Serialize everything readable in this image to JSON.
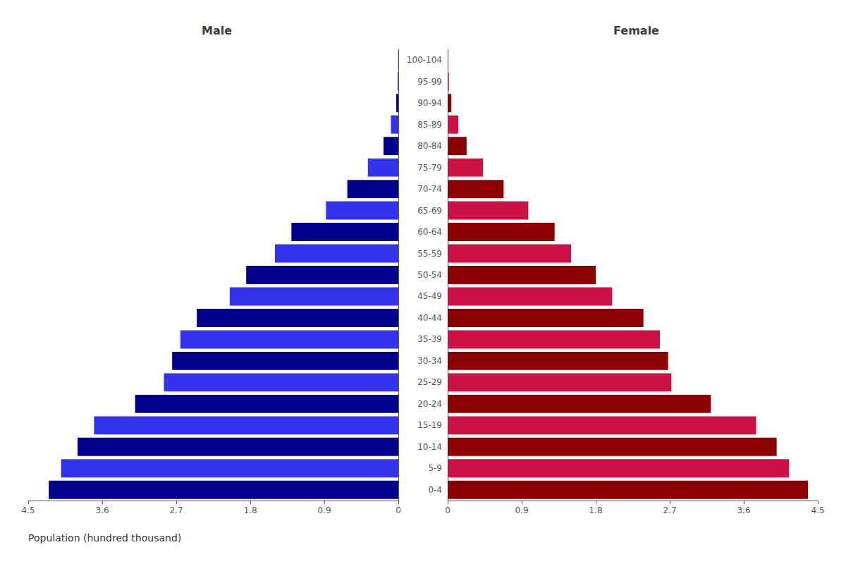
{
  "chart_data": [
    {
      "type": "bar",
      "orientation": "horizontal",
      "title": "Male",
      "xlabel": "Population (hundred thousand)",
      "categories": [
        "0-4",
        "5-9",
        "10-14",
        "15-19",
        "20-24",
        "25-29",
        "30-34",
        "35-39",
        "40-44",
        "45-49",
        "50-54",
        "55-59",
        "60-64",
        "65-69",
        "70-74",
        "75-79",
        "80-84",
        "85-89",
        "90-94",
        "95-99",
        "100-104"
      ],
      "values": [
        4.25,
        4.1,
        3.9,
        3.7,
        3.2,
        2.85,
        2.75,
        2.65,
        2.45,
        2.05,
        1.85,
        1.5,
        1.3,
        0.88,
        0.62,
        0.37,
        0.18,
        0.09,
        0.025,
        0.008,
        0.002
      ],
      "colors": [
        "#00008B",
        "#3333EE",
        "#00008B",
        "#3333EE",
        "#00008B",
        "#3333EE",
        "#00008B",
        "#3333EE",
        "#00008B",
        "#3333EE",
        "#00008B",
        "#3333EE",
        "#00008B",
        "#3333EE",
        "#00008B",
        "#3333EE",
        "#00008B",
        "#3333EE",
        "#00008B",
        "#3333EE",
        "#00008B"
      ],
      "xlim": [
        4.5,
        0
      ],
      "xticks": [
        0,
        0.9,
        1.8,
        2.7,
        3.6,
        4.5
      ],
      "grid": false,
      "tick_labels": "x"
    },
    {
      "type": "bar",
      "orientation": "horizontal",
      "title": "Female",
      "categories": [
        "0-4",
        "5-9",
        "10-14",
        "15-19",
        "20-24",
        "25-29",
        "30-34",
        "35-39",
        "40-44",
        "45-49",
        "50-54",
        "55-59",
        "60-64",
        "65-69",
        "70-74",
        "75-79",
        "80-84",
        "85-89",
        "90-94",
        "95-99",
        "100-104"
      ],
      "values": [
        4.38,
        4.15,
        4.0,
        3.75,
        3.2,
        2.72,
        2.68,
        2.58,
        2.38,
        2.0,
        1.8,
        1.5,
        1.3,
        0.98,
        0.68,
        0.43,
        0.23,
        0.13,
        0.045,
        0.015,
        0.004
      ],
      "colors": [
        "#8B0000",
        "#CC1144",
        "#8B0000",
        "#CC1144",
        "#8B0000",
        "#CC1144",
        "#8B0000",
        "#CC1144",
        "#8B0000",
        "#CC1144",
        "#8B0000",
        "#CC1144",
        "#8B0000",
        "#CC1144",
        "#8B0000",
        "#CC1144",
        "#8B0000",
        "#CC1144",
        "#8B0000",
        "#CC1144",
        "#8B0000"
      ],
      "xlim": [
        0,
        4.5
      ],
      "xticks": [
        0,
        0.9,
        1.8,
        2.7,
        3.6,
        4.5
      ],
      "grid": false
    }
  ]
}
